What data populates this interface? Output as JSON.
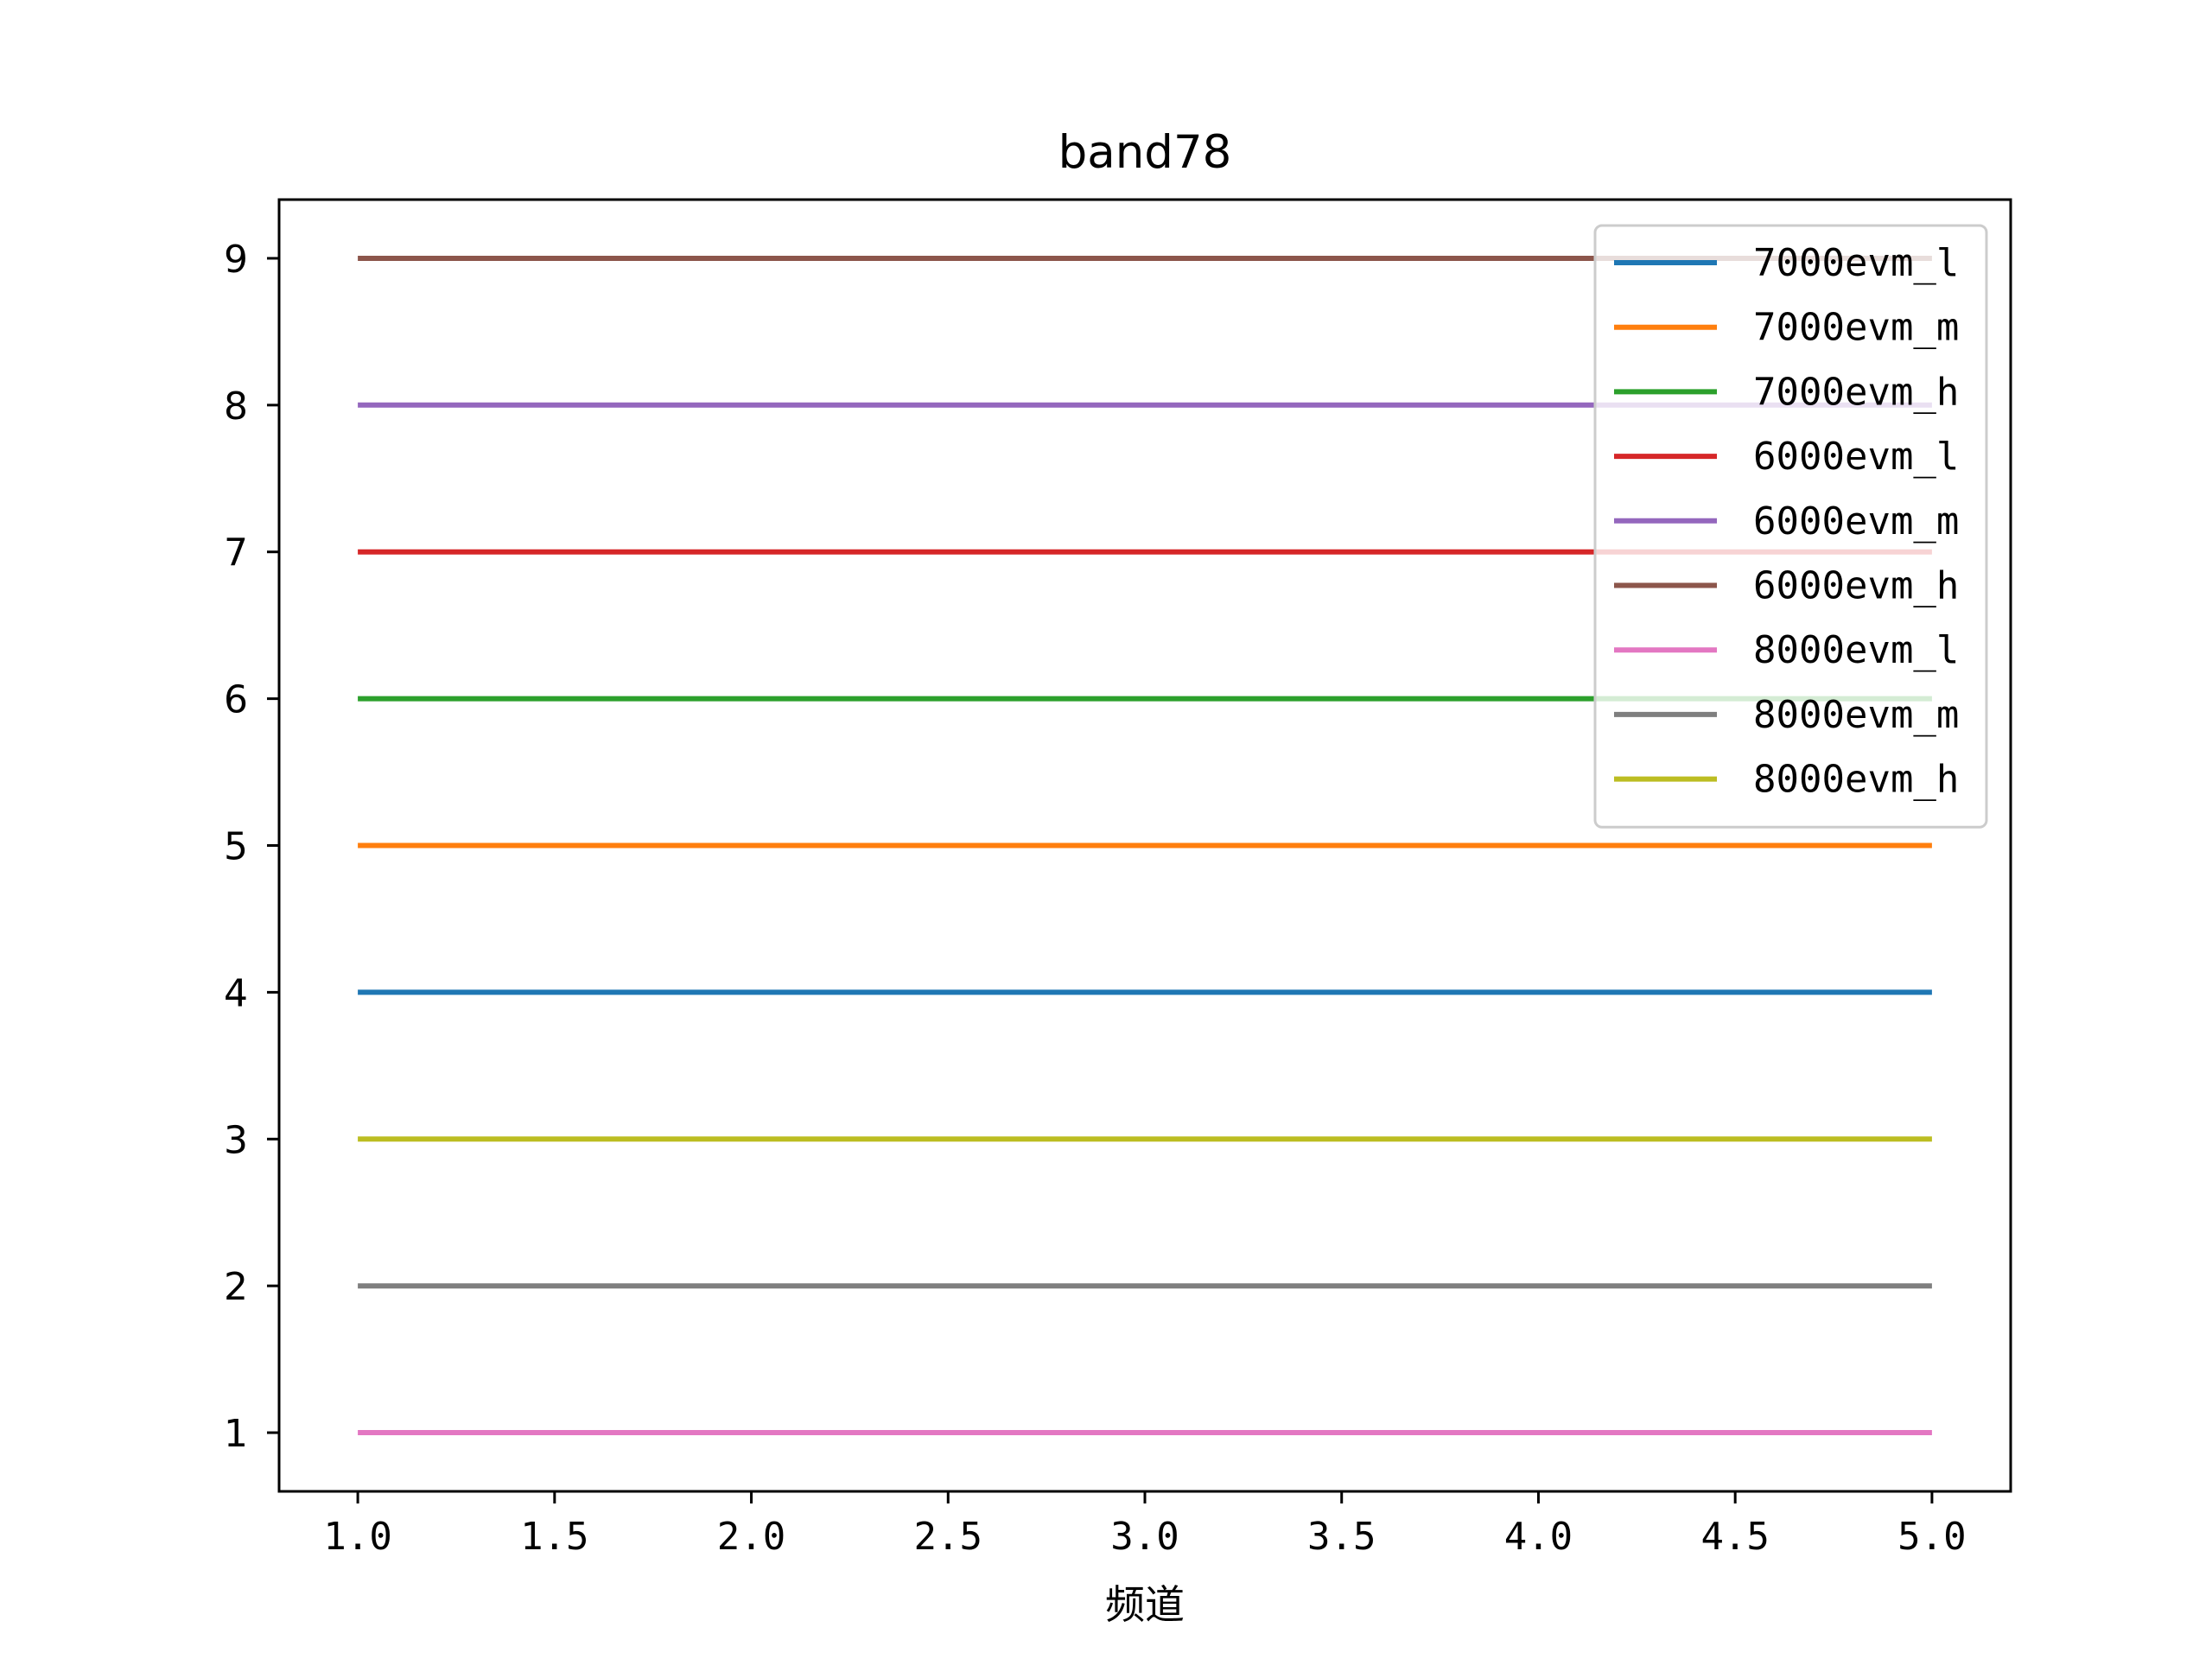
{
  "chart_data": {
    "type": "line",
    "title": "band78",
    "xlabel": "频道",
    "ylabel": "",
    "x": [
      1,
      2,
      3,
      4,
      5
    ],
    "xlim": [
      0.8,
      5.2
    ],
    "ylim": [
      0.6,
      9.4
    ],
    "xticks": [
      "1.0",
      "1.5",
      "2.0",
      "2.5",
      "3.0",
      "3.5",
      "4.0",
      "4.5",
      "5.0"
    ],
    "yticks": [
      "1",
      "2",
      "3",
      "4",
      "5",
      "6",
      "7",
      "8",
      "9"
    ],
    "grid": false,
    "legend_position": "top-right",
    "series": [
      {
        "name": "7000evm_l",
        "color": "#1f77b4",
        "values": [
          4,
          4,
          4,
          4,
          4
        ]
      },
      {
        "name": "7000evm_m",
        "color": "#ff7f0e",
        "values": [
          5,
          5,
          5,
          5,
          5
        ]
      },
      {
        "name": "7000evm_h",
        "color": "#2ca02c",
        "values": [
          6,
          6,
          6,
          6,
          6
        ]
      },
      {
        "name": "6000evm_l",
        "color": "#d62728",
        "values": [
          7,
          7,
          7,
          7,
          7
        ]
      },
      {
        "name": "6000evm_m",
        "color": "#9467bd",
        "values": [
          8,
          8,
          8,
          8,
          8
        ]
      },
      {
        "name": "6000evm_h",
        "color": "#8c564b",
        "values": [
          9,
          9,
          9,
          9,
          9
        ]
      },
      {
        "name": "8000evm_l",
        "color": "#e377c2",
        "values": [
          1,
          1,
          1,
          1,
          1
        ]
      },
      {
        "name": "8000evm_m",
        "color": "#7f7f7f",
        "values": [
          2,
          2,
          2,
          2,
          2
        ]
      },
      {
        "name": "8000evm_h",
        "color": "#bcbd22",
        "values": [
          3,
          3,
          3,
          3,
          3
        ]
      }
    ]
  }
}
